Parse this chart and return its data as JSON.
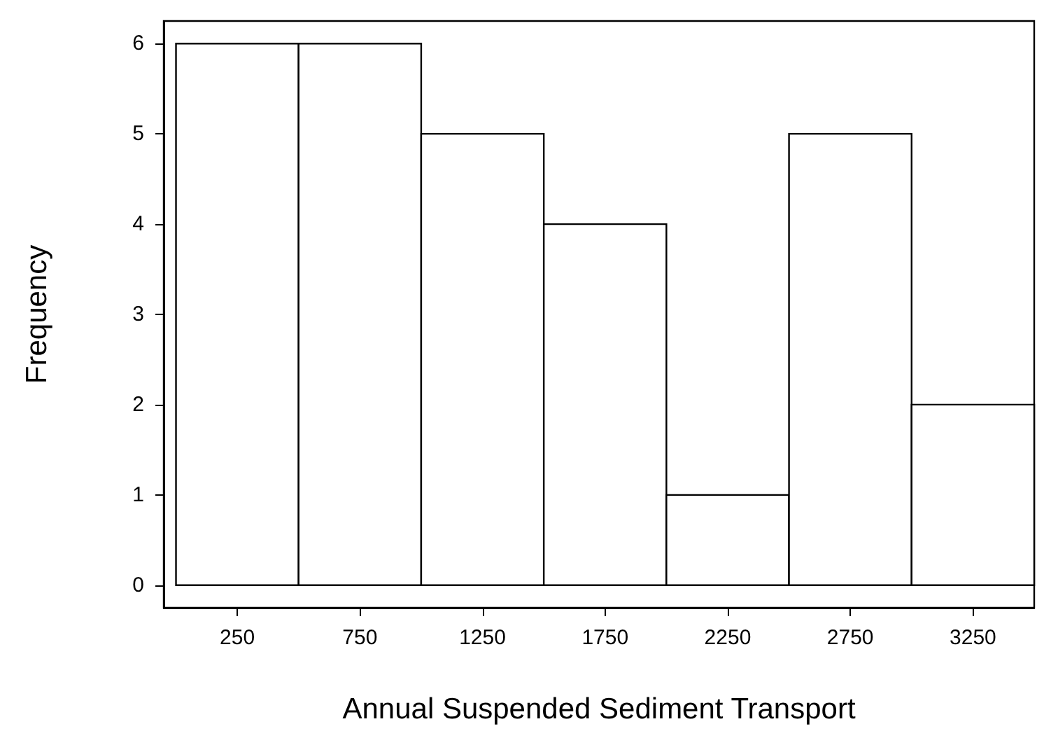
{
  "chart_data": {
    "type": "histogram",
    "xlabel": "Annual Suspended Sediment Transport",
    "ylabel": "Frequency",
    "bins": [
      0,
      500,
      1000,
      1500,
      2000,
      2500,
      3000,
      3500
    ],
    "values": [
      6,
      6,
      5,
      4,
      1,
      5,
      2
    ],
    "color": "#ffffff",
    "xlim": [
      -50,
      3500
    ],
    "xticks": [
      250,
      750,
      1250,
      1750,
      2250,
      2750,
      3250
    ],
    "ylim": [
      -0.25,
      6.25
    ],
    "yticks": [
      0,
      1,
      2,
      3,
      4,
      5,
      6
    ]
  }
}
